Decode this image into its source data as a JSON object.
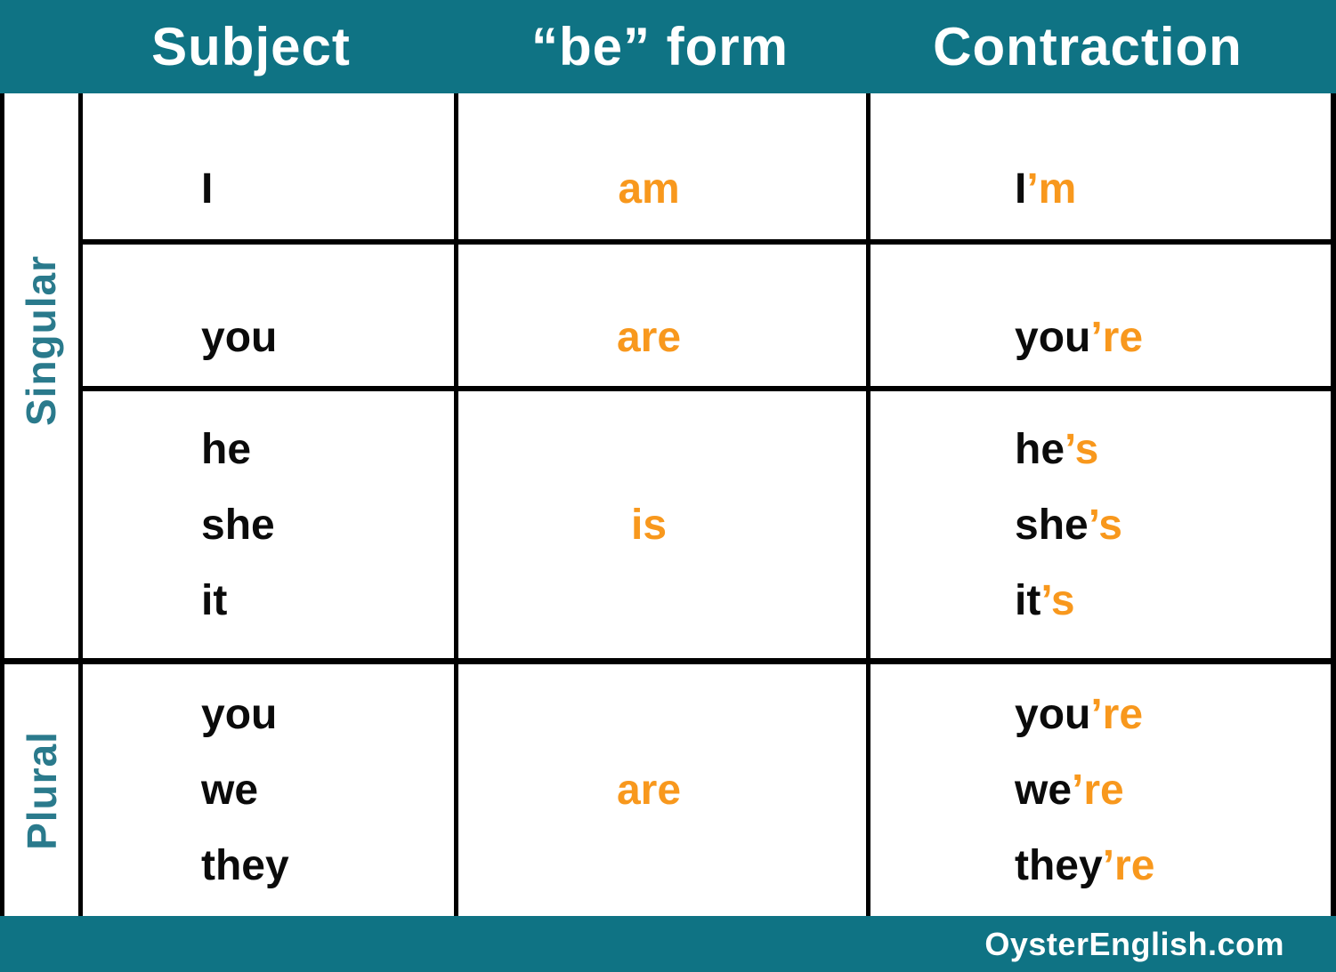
{
  "chart_data": {
    "type": "table",
    "columns": [
      "Subject",
      "“be” form",
      "Contraction"
    ],
    "row_groups": [
      {
        "label": "Singular",
        "rows": [
          {
            "subjects": [
              "I"
            ],
            "be_form": "am",
            "contractions": [
              {
                "base": "I",
                "suffix": "’m"
              }
            ]
          },
          {
            "subjects": [
              "you"
            ],
            "be_form": "are",
            "contractions": [
              {
                "base": "you",
                "suffix": "’re"
              }
            ]
          },
          {
            "subjects": [
              "he",
              "she",
              "it"
            ],
            "be_form": "is",
            "contractions": [
              {
                "base": "he",
                "suffix": "’s"
              },
              {
                "base": "she",
                "suffix": "’s"
              },
              {
                "base": "it",
                "suffix": "’s"
              }
            ]
          }
        ]
      },
      {
        "label": "Plural",
        "rows": [
          {
            "subjects": [
              "you",
              "we",
              "they"
            ],
            "be_form": "are",
            "contractions": [
              {
                "base": "you",
                "suffix": "’re"
              },
              {
                "base": "we",
                "suffix": "’re"
              },
              {
                "base": "they",
                "suffix": "’re"
              }
            ]
          }
        ]
      }
    ]
  },
  "footer": {
    "site": "OysterEnglish.com"
  },
  "colors": {
    "teal": "#0F7384",
    "label-teal": "#2A7A8C",
    "orange": "#F8981D",
    "line-black": "#000000"
  }
}
